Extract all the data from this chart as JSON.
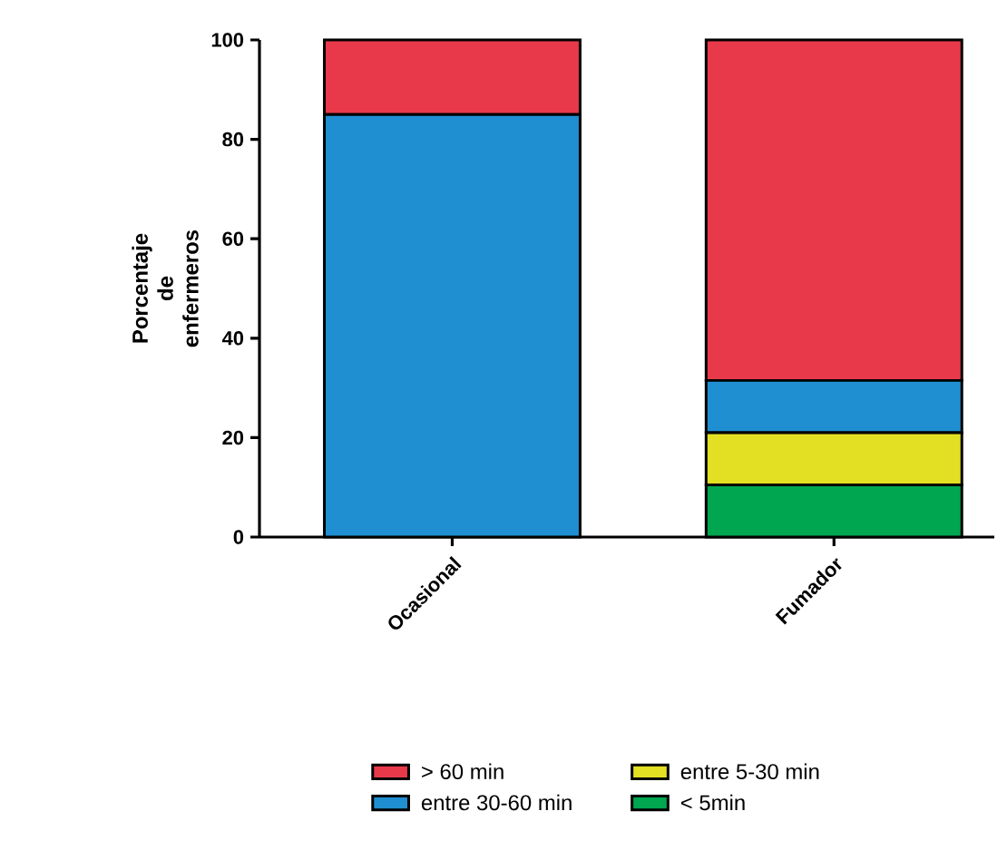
{
  "chart_data": {
    "type": "bar",
    "stacked": true,
    "ylabel": "Porcentaje de enfermeros",
    "categories": [
      "Ocasional",
      "Fumador"
    ],
    "series": [
      {
        "name": "< 5min",
        "color": "#00a650",
        "values": [
          0,
          10.5
        ]
      },
      {
        "name": "entre 5-30 min",
        "color": "#e3e024",
        "values": [
          0,
          10.5
        ]
      },
      {
        "name": "entre 30-60 min",
        "color": "#1f8fd1",
        "values": [
          85,
          10.5
        ]
      },
      {
        "name": "> 60 min",
        "color": "#e8394a",
        "values": [
          15,
          68.5
        ]
      }
    ],
    "ylim": [
      0,
      100
    ],
    "yticks": [
      0,
      20,
      40,
      60,
      80,
      100
    ],
    "grid": false,
    "legend": "bottom"
  }
}
